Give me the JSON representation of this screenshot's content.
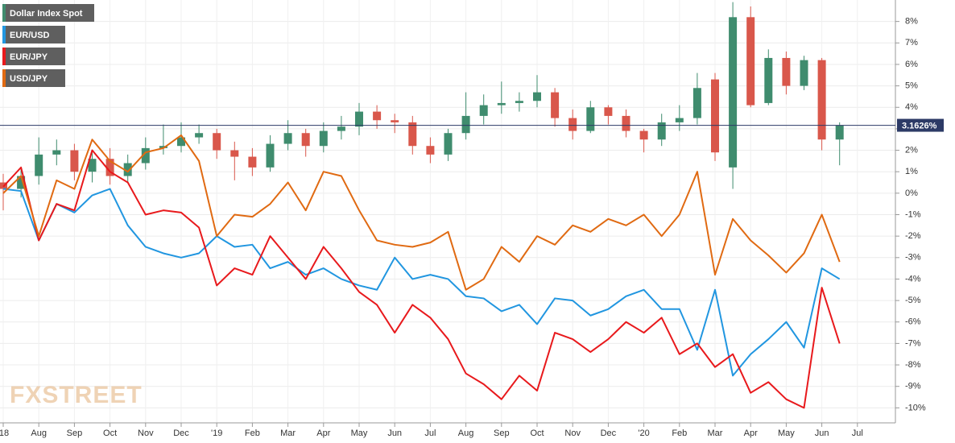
{
  "chart_data": {
    "type": "candlestick",
    "watermark": "FXSTREET",
    "categories": [
      "'18",
      null,
      "Aug",
      null,
      "Sep",
      null,
      "Oct",
      null,
      "Nov",
      null,
      "Dec",
      null,
      "'19",
      null,
      "Feb",
      null,
      "Mar",
      null,
      "Apr",
      null,
      "May",
      null,
      "Jun",
      null,
      "Jul",
      null,
      "Aug",
      null,
      "Sep",
      null,
      "Oct",
      null,
      "Nov",
      null,
      "Dec",
      null,
      "'20",
      null,
      "Feb",
      null,
      "Mar",
      null,
      "Apr",
      null,
      "May",
      null,
      "Jun",
      null,
      "Jul"
    ],
    "ylim": [
      -10.7,
      9
    ],
    "yticks": [
      {
        "value": 8,
        "label": "8%"
      },
      {
        "value": 7,
        "label": "7%"
      },
      {
        "value": 6,
        "label": "6%"
      },
      {
        "value": 5,
        "label": "5%"
      },
      {
        "value": 4,
        "label": "4%"
      },
      {
        "value": 3,
        "label": "3%"
      },
      {
        "value": 2,
        "label": "2%"
      },
      {
        "value": 1,
        "label": "1%"
      },
      {
        "value": 0,
        "label": "0%"
      },
      {
        "value": -1,
        "label": "-1%"
      },
      {
        "value": -2,
        "label": "-2%"
      },
      {
        "value": -3,
        "label": "-3%"
      },
      {
        "value": -4,
        "label": "-4%"
      },
      {
        "value": -5,
        "label": "-5%"
      },
      {
        "value": -6,
        "label": "-6%"
      },
      {
        "value": -7,
        "label": "-7%"
      },
      {
        "value": -8,
        "label": "-8%"
      },
      {
        "value": -9,
        "label": "-9%"
      },
      {
        "value": -10,
        "label": "-10%"
      }
    ],
    "grid": true,
    "last_value": 3.1626,
    "last_label": "3.1626%",
    "series": [
      {
        "name": "Dollar Index Spot",
        "type": "candlestick",
        "color": "#3f8c6e",
        "up_color": "#3f8c6e",
        "down_color": "#d9574b",
        "open": [
          0.5,
          0.2,
          0.8,
          1.8,
          2.0,
          1.0,
          1.6,
          0.8,
          1.4,
          2.1,
          2.2,
          2.6,
          2.8,
          2.0,
          1.7,
          1.2,
          2.3,
          2.8,
          2.2,
          2.9,
          3.1,
          3.8,
          3.4,
          3.3,
          2.2,
          1.8,
          2.8,
          3.6,
          4.1,
          4.2,
          4.3,
          4.7,
          3.5,
          2.9,
          4.0,
          3.6,
          2.9,
          2.5,
          3.3,
          3.5,
          5.3,
          1.2,
          8.2,
          4.2,
          6.3,
          5.0,
          6.2,
          2.5,
          null
        ],
        "high": [
          0.9,
          1.2,
          2.6,
          2.5,
          2.3,
          1.9,
          2.1,
          1.8,
          2.6,
          3.2,
          3.3,
          3.2,
          3.0,
          2.4,
          2.1,
          2.7,
          3.4,
          3.0,
          3.3,
          3.6,
          4.2,
          4.1,
          3.7,
          3.6,
          2.6,
          3.0,
          4.7,
          4.6,
          5.2,
          4.7,
          5.5,
          4.9,
          3.9,
          4.3,
          4.1,
          3.9,
          3.0,
          3.7,
          4.1,
          5.6,
          5.6,
          8.9,
          8.7,
          6.7,
          6.6,
          6.4,
          6.3,
          3.3,
          null
        ],
        "low": [
          -0.8,
          -0.2,
          0.4,
          1.3,
          0.6,
          0.5,
          0.4,
          0.5,
          1.1,
          1.8,
          1.9,
          2.3,
          1.6,
          0.6,
          0.8,
          1.0,
          2.0,
          1.7,
          1.9,
          2.5,
          2.7,
          3.0,
          2.8,
          1.8,
          1.4,
          1.5,
          2.5,
          3.2,
          3.7,
          3.8,
          4.0,
          3.1,
          2.5,
          2.8,
          3.2,
          2.6,
          1.9,
          2.2,
          2.9,
          3.2,
          1.5,
          0.2,
          4.0,
          4.1,
          4.6,
          4.8,
          2.0,
          1.3,
          null
        ],
        "close": [
          0.2,
          0.8,
          1.8,
          2.0,
          1.0,
          1.6,
          0.8,
          1.4,
          2.1,
          2.2,
          2.6,
          2.8,
          2.0,
          1.7,
          1.2,
          2.3,
          2.8,
          2.2,
          2.9,
          3.1,
          3.8,
          3.4,
          3.3,
          2.2,
          1.8,
          2.8,
          3.6,
          4.1,
          4.2,
          4.3,
          4.7,
          3.5,
          2.9,
          4.0,
          3.6,
          2.9,
          2.5,
          3.3,
          3.5,
          4.9,
          1.9,
          8.2,
          4.1,
          6.3,
          5.0,
          6.2,
          2.5,
          3.1626,
          null
        ]
      },
      {
        "name": "EUR/USD",
        "type": "line",
        "color": "#2196e0",
        "values": [
          0.2,
          0.1,
          -2.2,
          -0.5,
          -0.9,
          -0.1,
          0.2,
          -1.5,
          -2.5,
          -2.8,
          -3.0,
          -2.8,
          -2.0,
          -2.5,
          -2.4,
          -3.5,
          -3.2,
          -3.8,
          -3.5,
          -4.0,
          -4.3,
          -4.5,
          -3.0,
          -4.0,
          -3.8,
          -4.0,
          -4.8,
          -4.9,
          -5.5,
          -5.2,
          -6.1,
          -4.9,
          -5.0,
          -5.7,
          -5.4,
          -4.8,
          -4.5,
          -5.4,
          -5.4,
          -7.3,
          -4.5,
          -8.5,
          -7.5,
          -6.8,
          -6.0,
          -7.2,
          -3.5,
          -4.0,
          null
        ]
      },
      {
        "name": "EUR/JPY",
        "type": "line",
        "color": "#e8191c",
        "values": [
          0.3,
          1.2,
          -2.2,
          -0.5,
          -0.8,
          2.0,
          1.0,
          0.5,
          -1.0,
          -0.8,
          -0.9,
          -1.6,
          -4.3,
          -3.5,
          -3.8,
          -2.0,
          -3.0,
          -4.0,
          -2.5,
          -3.5,
          -4.6,
          -5.2,
          -6.5,
          -5.2,
          -5.8,
          -6.8,
          -8.4,
          -8.9,
          -9.6,
          -8.5,
          -9.2,
          -6.5,
          -6.8,
          -7.4,
          -6.8,
          -6.0,
          -6.5,
          -5.8,
          -7.5,
          -7.0,
          -8.1,
          -7.5,
          -9.3,
          -8.8,
          -9.6,
          -10.0,
          -4.4,
          -7.0,
          null
        ]
      },
      {
        "name": "USD/JPY",
        "type": "line",
        "color": "#e06a12",
        "values": [
          0.0,
          0.8,
          -2.0,
          0.6,
          0.2,
          2.5,
          1.5,
          1.0,
          1.9,
          2.1,
          2.7,
          1.5,
          -2.0,
          -1.0,
          -1.1,
          -0.5,
          0.5,
          -0.8,
          1.0,
          0.8,
          -0.8,
          -2.2,
          -2.4,
          -2.5,
          -2.3,
          -1.8,
          -4.5,
          -4.0,
          -2.5,
          -3.2,
          -2.0,
          -2.4,
          -1.5,
          -1.8,
          -1.2,
          -1.5,
          -1.0,
          -2.0,
          -1.0,
          1.0,
          -3.8,
          -1.2,
          -2.2,
          -2.9,
          -3.7,
          -2.8,
          -1.0,
          -3.2,
          null
        ]
      }
    ]
  }
}
